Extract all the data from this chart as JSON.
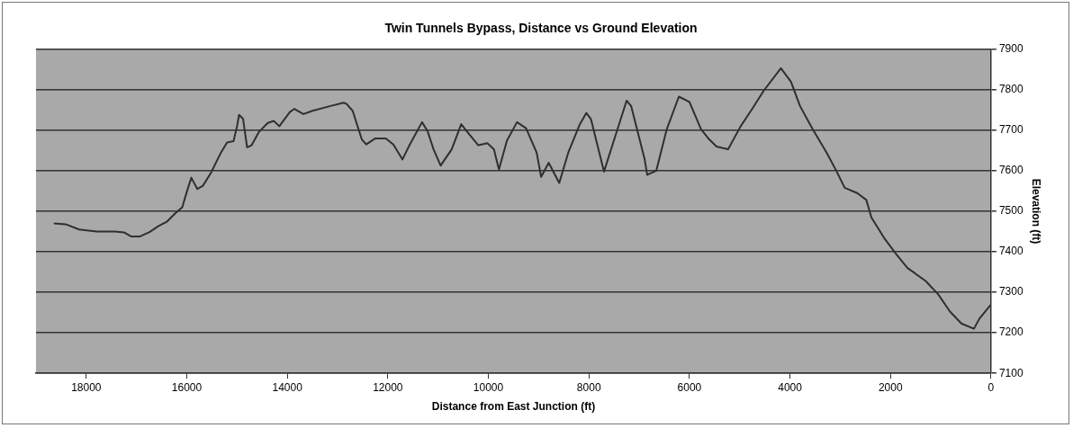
{
  "chart_data": {
    "type": "line",
    "title": "Twin Tunnels Bypass, Distance vs Ground Elevation",
    "xlabel": "Distance from East Junction (ft)",
    "ylabel": "Elevation (ft)",
    "xlim": [
      19000,
      0
    ],
    "xticks": [
      18000,
      16000,
      14000,
      12000,
      10000,
      8000,
      6000,
      4000,
      2000,
      0
    ],
    "ylim": [
      7100,
      7900
    ],
    "yticks": [
      7100,
      7200,
      7300,
      7400,
      7500,
      7600,
      7700,
      7800,
      7900
    ],
    "grid": "y",
    "legend": false,
    "marker": "none",
    "line_style": "solid",
    "series": [
      {
        "color": "#2e2e36",
        "x": [
          18630,
          18410,
          18140,
          17790,
          17430,
          17250,
          17110,
          16930,
          16750,
          16570,
          16390,
          16230,
          16090,
          16000,
          15910,
          15790,
          15680,
          15520,
          15320,
          15200,
          15070,
          15000,
          14960,
          14880,
          14800,
          14710,
          14570,
          14390,
          14270,
          14160,
          14070,
          13950,
          13860,
          13680,
          13500,
          13140,
          12880,
          12820,
          12700,
          12520,
          12430,
          12250,
          12040,
          11890,
          11710,
          11570,
          11320,
          11210,
          11090,
          10950,
          10730,
          10540,
          10380,
          10200,
          10020,
          9890,
          9790,
          9630,
          9430,
          9250,
          9040,
          8950,
          8800,
          8590,
          8410,
          8180,
          8050,
          7960,
          7700,
          7430,
          7250,
          7160,
          6890,
          6840,
          6660,
          6450,
          6210,
          6000,
          5770,
          5610,
          5460,
          5230,
          4980,
          4750,
          4520,
          4180,
          3980,
          3800,
          3550,
          3270,
          3090,
          2910,
          2660,
          2480,
          2380,
          2130,
          1890,
          1660,
          1300,
          1050,
          820,
          590,
          340,
          230,
          0
        ],
        "values": [
          7470,
          7468,
          7455,
          7450,
          7450,
          7448,
          7438,
          7438,
          7448,
          7463,
          7475,
          7495,
          7510,
          7548,
          7583,
          7555,
          7563,
          7595,
          7645,
          7670,
          7673,
          7710,
          7738,
          7728,
          7658,
          7663,
          7695,
          7718,
          7723,
          7710,
          7725,
          7745,
          7753,
          7740,
          7748,
          7760,
          7768,
          7765,
          7748,
          7678,
          7665,
          7680,
          7680,
          7665,
          7628,
          7663,
          7720,
          7698,
          7653,
          7613,
          7653,
          7715,
          7690,
          7663,
          7668,
          7653,
          7603,
          7675,
          7720,
          7705,
          7645,
          7585,
          7620,
          7570,
          7645,
          7715,
          7743,
          7728,
          7598,
          7703,
          7773,
          7760,
          7628,
          7590,
          7600,
          7703,
          7783,
          7770,
          7703,
          7678,
          7660,
          7653,
          7710,
          7753,
          7798,
          7853,
          7820,
          7760,
          7703,
          7645,
          7603,
          7558,
          7545,
          7528,
          7485,
          7435,
          7395,
          7360,
          7328,
          7295,
          7253,
          7223,
          7210,
          7235,
          7270
        ]
      }
    ]
  }
}
